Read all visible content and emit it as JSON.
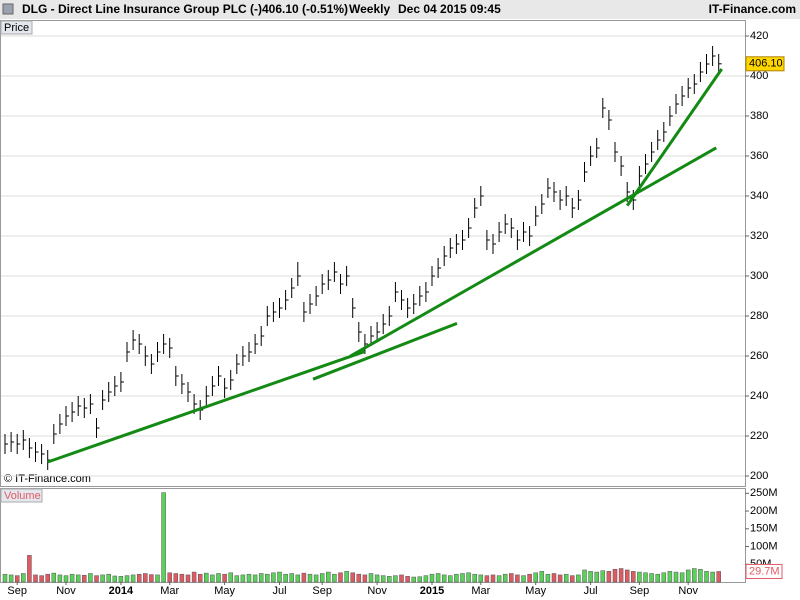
{
  "chart_data": {
    "type": "ohlc",
    "title": "DLG - Direct Line Insurance Group PLC (-)",
    "quote": "406.10 (-0.51%)",
    "interval": "Weekly",
    "timestamp": "Dec 04 2015 09:45",
    "source": "IT-Finance.com",
    "copyright": "© IT-Finance.com",
    "price_label": "Price",
    "volume_label": "Volume",
    "categories": [
      null,
      null,
      "Sep",
      null,
      null,
      null,
      null,
      null,
      null,
      null,
      "Nov",
      null,
      null,
      null,
      null,
      null,
      null,
      null,
      null,
      "2014",
      null,
      null,
      null,
      null,
      null,
      null,
      null,
      "Mar",
      null,
      null,
      null,
      null,
      null,
      null,
      null,
      null,
      "May",
      null,
      null,
      null,
      null,
      null,
      null,
      null,
      null,
      "Jul",
      null,
      null,
      null,
      null,
      null,
      null,
      "Sep",
      null,
      null,
      null,
      null,
      null,
      null,
      null,
      null,
      "Nov",
      null,
      null,
      null,
      null,
      null,
      null,
      null,
      null,
      "2015",
      null,
      null,
      null,
      null,
      null,
      null,
      null,
      "Mar",
      null,
      null,
      null,
      null,
      null,
      null,
      null,
      null,
      "May",
      null,
      null,
      null,
      null,
      null,
      null,
      null,
      null,
      "Jul",
      null,
      null,
      null,
      null,
      null,
      null,
      null,
      "Sep",
      null,
      null,
      null,
      null,
      null,
      null,
      null,
      "Nov",
      null,
      null,
      null,
      null,
      null
    ],
    "close": [
      216,
      217,
      216,
      218,
      214,
      212,
      211,
      208,
      221,
      226,
      230,
      232,
      235,
      234,
      236,
      224,
      238,
      242,
      245,
      247,
      262,
      268,
      266,
      260,
      256,
      262,
      266,
      264,
      250,
      246,
      242,
      236,
      233,
      240,
      245,
      250,
      244,
      248,
      256,
      260,
      262,
      266,
      270,
      280,
      282,
      284,
      288,
      294,
      300,
      282,
      286,
      290,
      296,
      298,
      302,
      296,
      300,
      284,
      272,
      266,
      270,
      272,
      276,
      280,
      292,
      288,
      284,
      286,
      290,
      292,
      300,
      304,
      310,
      314,
      316,
      318,
      324,
      334,
      340,
      318,
      316,
      322,
      326,
      324,
      318,
      322,
      320,
      330,
      336,
      344,
      342,
      338,
      340,
      334,
      338,
      352,
      360,
      364,
      384,
      378,
      362,
      355,
      342,
      338,
      350,
      356,
      362,
      368,
      372,
      380,
      386,
      390,
      394,
      396,
      402,
      406,
      410,
      406.1
    ],
    "high": [
      221,
      222,
      221,
      223,
      219,
      217,
      216,
      213,
      226,
      231,
      235,
      237,
      240,
      239,
      241,
      229,
      243,
      247,
      250,
      252,
      267,
      273,
      271,
      265,
      261,
      267,
      271,
      269,
      255,
      251,
      247,
      241,
      238,
      245,
      250,
      255,
      249,
      253,
      261,
      265,
      267,
      271,
      275,
      285,
      287,
      289,
      293,
      299,
      307,
      287,
      291,
      295,
      301,
      303,
      307,
      301,
      305,
      289,
      277,
      271,
      275,
      277,
      281,
      285,
      297,
      293,
      289,
      291,
      295,
      297,
      305,
      309,
      315,
      319,
      321,
      323,
      329,
      339,
      345,
      323,
      321,
      327,
      331,
      329,
      323,
      327,
      325,
      335,
      341,
      349,
      347,
      343,
      345,
      339,
      343,
      357,
      365,
      369,
      389,
      383,
      367,
      360,
      347,
      343,
      355,
      361,
      367,
      373,
      377,
      385,
      391,
      395,
      399,
      401,
      407,
      411,
      415,
      411
    ],
    "low": [
      211,
      212,
      211,
      213,
      209,
      207,
      206,
      203,
      216,
      221,
      225,
      227,
      230,
      229,
      231,
      219,
      233,
      237,
      240,
      242,
      257,
      263,
      261,
      255,
      251,
      257,
      261,
      259,
      245,
      241,
      237,
      231,
      228,
      235,
      240,
      245,
      239,
      243,
      251,
      255,
      257,
      261,
      265,
      275,
      277,
      279,
      283,
      289,
      295,
      277,
      281,
      285,
      291,
      293,
      297,
      291,
      295,
      279,
      267,
      261,
      265,
      267,
      271,
      275,
      287,
      283,
      279,
      281,
      285,
      287,
      295,
      299,
      305,
      309,
      311,
      313,
      319,
      329,
      335,
      313,
      311,
      317,
      321,
      319,
      313,
      317,
      315,
      325,
      331,
      339,
      337,
      333,
      335,
      329,
      333,
      347,
      355,
      359,
      379,
      373,
      357,
      350,
      337,
      333,
      345,
      351,
      357,
      363,
      367,
      375,
      381,
      385,
      389,
      391,
      397,
      401,
      405,
      401
    ],
    "volume": [
      22,
      20,
      18,
      24,
      75,
      20,
      18,
      22,
      25,
      20,
      18,
      22,
      20,
      19,
      24,
      18,
      20,
      22,
      17,
      16,
      18,
      20,
      22,
      24,
      21,
      20,
      252,
      26,
      24,
      22,
      20,
      28,
      22,
      25,
      20,
      24,
      22,
      26,
      18,
      20,
      22,
      20,
      24,
      22,
      26,
      28,
      22,
      24,
      20,
      25,
      22,
      20,
      24,
      28,
      22,
      26,
      30,
      26,
      22,
      20,
      24,
      20,
      18,
      16,
      18,
      20,
      16,
      14,
      15,
      18,
      22,
      24,
      20,
      18,
      22,
      24,
      26,
      22,
      20,
      18,
      20,
      18,
      22,
      24,
      20,
      18,
      22,
      26,
      30,
      22,
      24,
      20,
      22,
      18,
      20,
      34,
      30,
      28,
      32,
      30,
      36,
      38,
      34,
      30,
      28,
      26,
      24,
      22,
      26,
      30,
      28,
      26,
      34,
      38,
      36,
      30,
      28,
      29.7
    ],
    "bar_color": "#000000",
    "up_color": "#5ad25a",
    "down_color": "#e05a64",
    "ylim": [
      195,
      428
    ],
    "yticks": [
      200,
      220,
      240,
      260,
      280,
      300,
      320,
      340,
      360,
      380,
      400,
      420
    ],
    "vlim": [
      0,
      265
    ],
    "vticks": [
      {
        "value": 50,
        "label": "50M"
      },
      {
        "value": 100,
        "label": "100M"
      },
      {
        "value": 150,
        "label": "150M"
      },
      {
        "value": 200,
        "label": "200M"
      },
      {
        "value": 250,
        "label": "250M"
      }
    ],
    "last_price": {
      "value": 406.1,
      "label": "406.10"
    },
    "last_volume": {
      "value": 29.7,
      "label": "29.7M"
    },
    "grid": true,
    "trendline_color": "#138a13",
    "trendlines": [
      {
        "from": [
          7.0,
          207.0
        ],
        "to": [
          59.0,
          262.3
        ]
      },
      {
        "from": [
          50.5,
          248.4
        ],
        "to": [
          74.1,
          276.3
        ]
      },
      {
        "from": [
          56.6,
          259.9
        ],
        "to": [
          116.6,
          364.1
        ]
      },
      {
        "from": [
          102.0,
          335.2
        ],
        "to": [
          117.5,
          403.5
        ]
      }
    ]
  }
}
